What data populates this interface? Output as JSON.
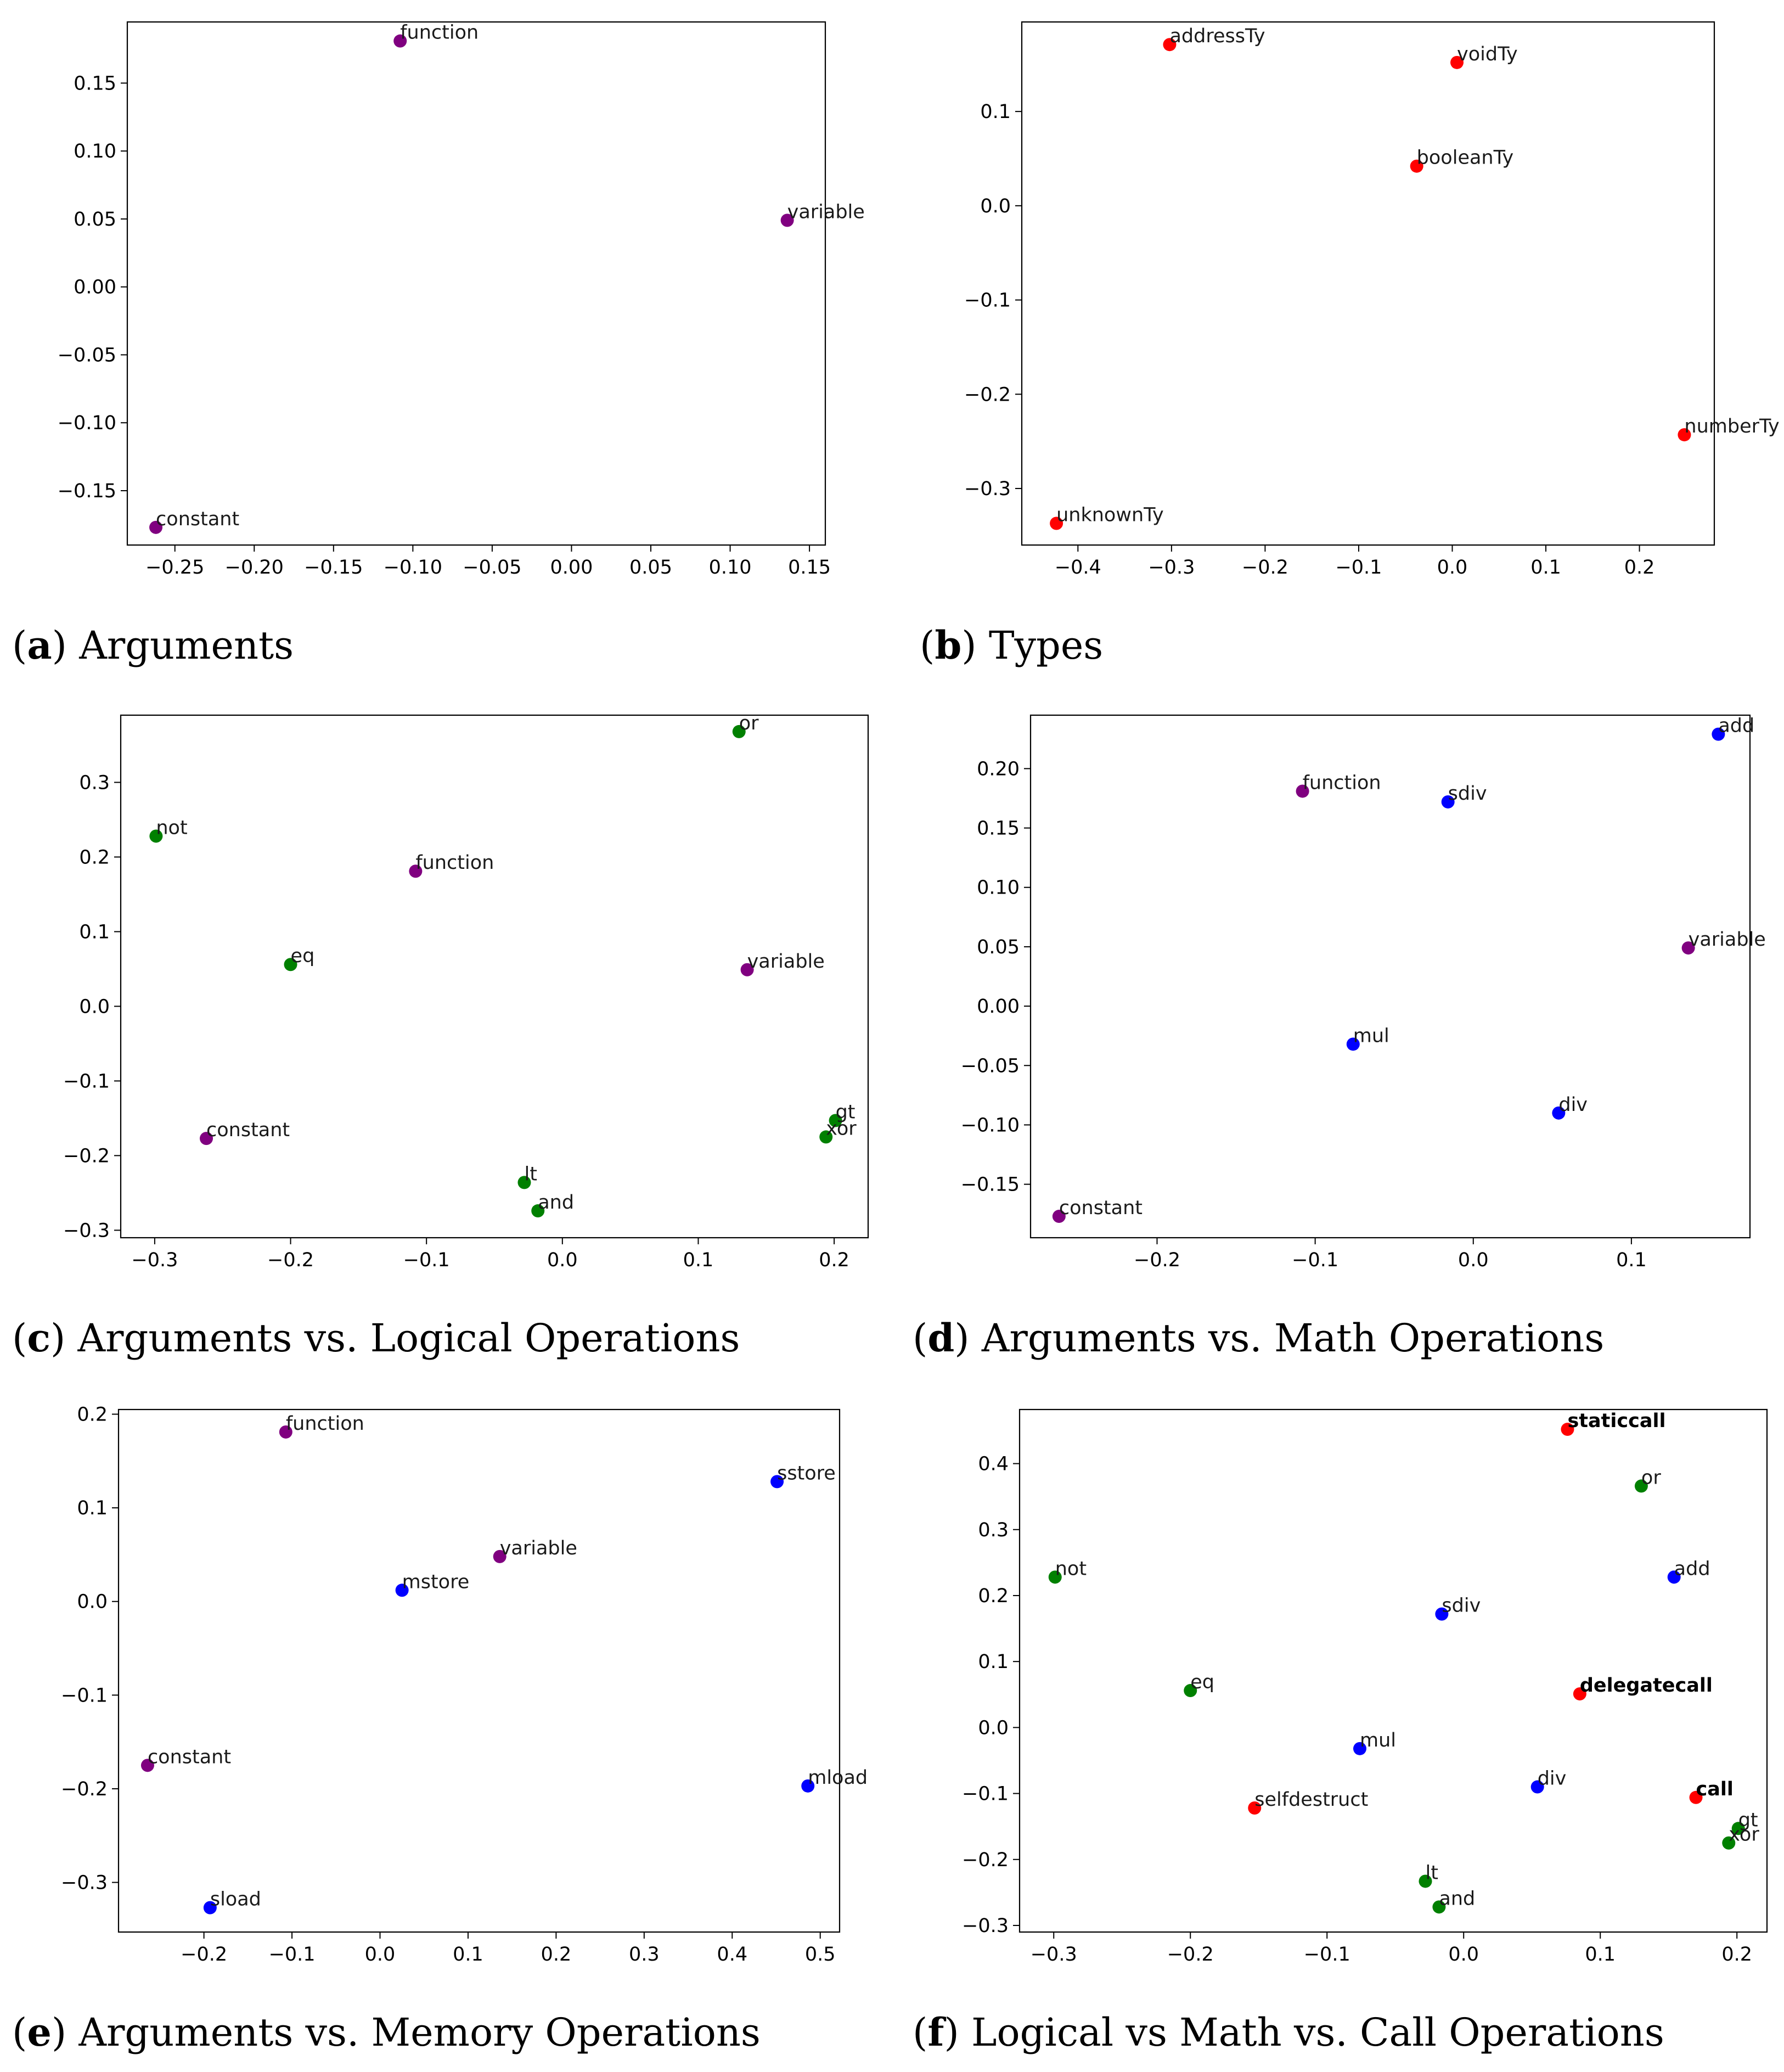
{
  "colors": {
    "purple": "#800080",
    "red": "#ff0000",
    "green": "#008000",
    "blue": "#0000ff"
  },
  "chart_data": [
    {
      "type": "scatter",
      "caption_letter": "a",
      "caption_text": "Arguments",
      "xlim": [
        -0.28,
        0.16
      ],
      "ylim": [
        -0.19,
        0.195
      ],
      "xticks": [
        -0.25,
        -0.2,
        -0.15,
        -0.1,
        -0.05,
        0.0,
        0.05,
        0.1,
        0.15
      ],
      "xtick_labels": [
        "−0.25",
        "−0.20",
        "−0.15",
        "−0.10",
        "−0.05",
        "0.00",
        "0.05",
        "0.10",
        "0.15"
      ],
      "yticks": [
        -0.15,
        -0.1,
        -0.05,
        0.0,
        0.05,
        0.1,
        0.15
      ],
      "ytick_labels": [
        "−0.15",
        "−0.10",
        "−0.05",
        "0.00",
        "0.05",
        "0.10",
        "0.15"
      ],
      "points": [
        {
          "label": "function",
          "x": -0.108,
          "y": 0.181,
          "color": "purple"
        },
        {
          "label": "variable",
          "x": 0.136,
          "y": 0.049,
          "color": "purple"
        },
        {
          "label": "constant",
          "x": -0.262,
          "y": -0.177,
          "color": "purple"
        }
      ]
    },
    {
      "type": "scatter",
      "caption_letter": "b",
      "caption_text": "Types",
      "xlim": [
        -0.46,
        0.28
      ],
      "ylim": [
        -0.36,
        0.195
      ],
      "xticks": [
        -0.4,
        -0.3,
        -0.2,
        -0.1,
        0.0,
        0.1,
        0.2
      ],
      "xtick_labels": [
        "−0.4",
        "−0.3",
        "−0.2",
        "−0.1",
        "0.0",
        "0.1",
        "0.2"
      ],
      "yticks": [
        -0.3,
        -0.2,
        -0.1,
        0.0,
        0.1
      ],
      "ytick_labels": [
        "−0.3",
        "−0.2",
        "−0.1",
        "0.0",
        "0.1"
      ],
      "points": [
        {
          "label": "addressTy",
          "x": -0.302,
          "y": 0.171,
          "color": "red"
        },
        {
          "label": "voidTy",
          "x": 0.005,
          "y": 0.152,
          "color": "red"
        },
        {
          "label": "booleanTy",
          "x": -0.038,
          "y": 0.042,
          "color": "red"
        },
        {
          "label": "numberTy",
          "x": 0.248,
          "y": -0.243,
          "color": "red"
        },
        {
          "label": "unknownTy",
          "x": -0.423,
          "y": -0.337,
          "color": "red"
        }
      ]
    },
    {
      "type": "scatter",
      "caption_letter": "c",
      "caption_text": "Arguments vs. Logical Operations",
      "xlim": [
        -0.325,
        0.225
      ],
      "ylim": [
        -0.31,
        0.39
      ],
      "xticks": [
        -0.3,
        -0.2,
        -0.1,
        0.0,
        0.1,
        0.2
      ],
      "xtick_labels": [
        "−0.3",
        "−0.2",
        "−0.1",
        "0.0",
        "0.1",
        "0.2"
      ],
      "yticks": [
        -0.3,
        -0.2,
        -0.1,
        0.0,
        0.1,
        0.2,
        0.3
      ],
      "ytick_labels": [
        "−0.3",
        "−0.2",
        "−0.1",
        "0.0",
        "0.1",
        "0.2",
        "0.3"
      ],
      "points": [
        {
          "label": "or",
          "x": 0.13,
          "y": 0.368,
          "color": "green"
        },
        {
          "label": "not",
          "x": -0.299,
          "y": 0.228,
          "color": "green"
        },
        {
          "label": "function",
          "x": -0.108,
          "y": 0.181,
          "color": "purple"
        },
        {
          "label": "eq",
          "x": -0.2,
          "y": 0.056,
          "color": "green"
        },
        {
          "label": "variable",
          "x": 0.136,
          "y": 0.049,
          "color": "purple"
        },
        {
          "label": "constant",
          "x": -0.262,
          "y": -0.177,
          "color": "purple"
        },
        {
          "label": "gt",
          "x": 0.201,
          "y": -0.153,
          "color": "green"
        },
        {
          "label": "xor",
          "x": 0.194,
          "y": -0.175,
          "color": "green"
        },
        {
          "label": "lt",
          "x": -0.028,
          "y": -0.236,
          "color": "green"
        },
        {
          "label": "and",
          "x": -0.018,
          "y": -0.274,
          "color": "green"
        }
      ]
    },
    {
      "type": "scatter",
      "caption_letter": "d",
      "caption_text": "Arguments vs. Math Operations",
      "xlim": [
        -0.28,
        0.175
      ],
      "ylim": [
        -0.195,
        0.245
      ],
      "xticks": [
        -0.2,
        -0.1,
        0.0,
        0.1
      ],
      "xtick_labels": [
        "−0.2",
        "−0.1",
        "0.0",
        "0.1"
      ],
      "yticks": [
        -0.15,
        -0.1,
        -0.05,
        0.0,
        0.05,
        0.1,
        0.15,
        0.2
      ],
      "ytick_labels": [
        "−0.15",
        "−0.10",
        "−0.05",
        "0.00",
        "0.05",
        "0.10",
        "0.15",
        "0.20"
      ],
      "points": [
        {
          "label": "add",
          "x": 0.155,
          "y": 0.229,
          "color": "blue"
        },
        {
          "label": "function",
          "x": -0.108,
          "y": 0.181,
          "color": "purple"
        },
        {
          "label": "sdiv",
          "x": -0.016,
          "y": 0.172,
          "color": "blue"
        },
        {
          "label": "variable",
          "x": 0.136,
          "y": 0.049,
          "color": "purple"
        },
        {
          "label": "mul",
          "x": -0.076,
          "y": -0.032,
          "color": "blue"
        },
        {
          "label": "div",
          "x": 0.054,
          "y": -0.09,
          "color": "blue"
        },
        {
          "label": "constant",
          "x": -0.262,
          "y": -0.177,
          "color": "purple"
        }
      ]
    },
    {
      "type": "scatter",
      "caption_letter": "e",
      "caption_text": "Arguments vs. Memory Operations",
      "xlim": [
        -0.297,
        0.522
      ],
      "ylim": [
        -0.353,
        0.205
      ],
      "xticks": [
        -0.2,
        -0.1,
        0.0,
        0.1,
        0.2,
        0.3,
        0.4,
        0.5
      ],
      "xtick_labels": [
        "−0.2",
        "−0.1",
        "0.0",
        "0.1",
        "0.2",
        "0.3",
        "0.4",
        "0.5"
      ],
      "yticks": [
        -0.3,
        -0.2,
        -0.1,
        0.0,
        0.1,
        0.2
      ],
      "ytick_labels": [
        "−0.3",
        "−0.2",
        "−0.1",
        "0.0",
        "0.1",
        "0.2"
      ],
      "points": [
        {
          "label": "function",
          "x": -0.107,
          "y": 0.181,
          "color": "purple"
        },
        {
          "label": "sstore",
          "x": 0.451,
          "y": 0.128,
          "color": "blue"
        },
        {
          "label": "variable",
          "x": 0.136,
          "y": 0.048,
          "color": "purple"
        },
        {
          "label": "mstore",
          "x": 0.025,
          "y": 0.012,
          "color": "blue"
        },
        {
          "label": "constant",
          "x": -0.264,
          "y": -0.175,
          "color": "purple"
        },
        {
          "label": "mload",
          "x": 0.486,
          "y": -0.197,
          "color": "blue"
        },
        {
          "label": "sload",
          "x": -0.193,
          "y": -0.327,
          "color": "blue"
        }
      ]
    },
    {
      "type": "scatter",
      "caption_letter": "f",
      "caption_text": "Logical vs Math vs. Call Operations",
      "xlim": [
        -0.325,
        0.222
      ],
      "ylim": [
        -0.31,
        0.482
      ],
      "xticks": [
        -0.3,
        -0.2,
        -0.1,
        0.0,
        0.1,
        0.2
      ],
      "xtick_labels": [
        "−0.3",
        "−0.2",
        "−0.1",
        "0.0",
        "0.1",
        "0.2"
      ],
      "yticks": [
        -0.3,
        -0.2,
        -0.1,
        0.0,
        0.1,
        0.2,
        0.3,
        0.4
      ],
      "ytick_labels": [
        "−0.3",
        "−0.2",
        "−0.1",
        "0.0",
        "0.1",
        "0.2",
        "0.3",
        "0.4"
      ],
      "points": [
        {
          "label": "staticcall",
          "x": 0.076,
          "y": 0.452,
          "color": "red",
          "bold": true
        },
        {
          "label": "or",
          "x": 0.13,
          "y": 0.366,
          "color": "green"
        },
        {
          "label": "not",
          "x": -0.299,
          "y": 0.228,
          "color": "green"
        },
        {
          "label": "add",
          "x": 0.154,
          "y": 0.228,
          "color": "blue"
        },
        {
          "label": "sdiv",
          "x": -0.016,
          "y": 0.172,
          "color": "blue"
        },
        {
          "label": "eq",
          "x": -0.2,
          "y": 0.056,
          "color": "green"
        },
        {
          "label": "delegatecall",
          "x": 0.085,
          "y": 0.051,
          "color": "red",
          "bold": true
        },
        {
          "label": "mul",
          "x": -0.076,
          "y": -0.032,
          "color": "blue"
        },
        {
          "label": "div",
          "x": 0.054,
          "y": -0.09,
          "color": "blue"
        },
        {
          "label": "call",
          "x": 0.17,
          "y": -0.106,
          "color": "red",
          "bold": true
        },
        {
          "label": "selfdestruct",
          "x": -0.153,
          "y": -0.122,
          "color": "red"
        },
        {
          "label": "gt",
          "x": 0.201,
          "y": -0.153,
          "color": "green"
        },
        {
          "label": "xor",
          "x": 0.194,
          "y": -0.175,
          "color": "green"
        },
        {
          "label": "lt",
          "x": -0.028,
          "y": -0.233,
          "color": "green"
        },
        {
          "label": "and",
          "x": -0.018,
          "y": -0.272,
          "color": "green"
        }
      ]
    }
  ]
}
